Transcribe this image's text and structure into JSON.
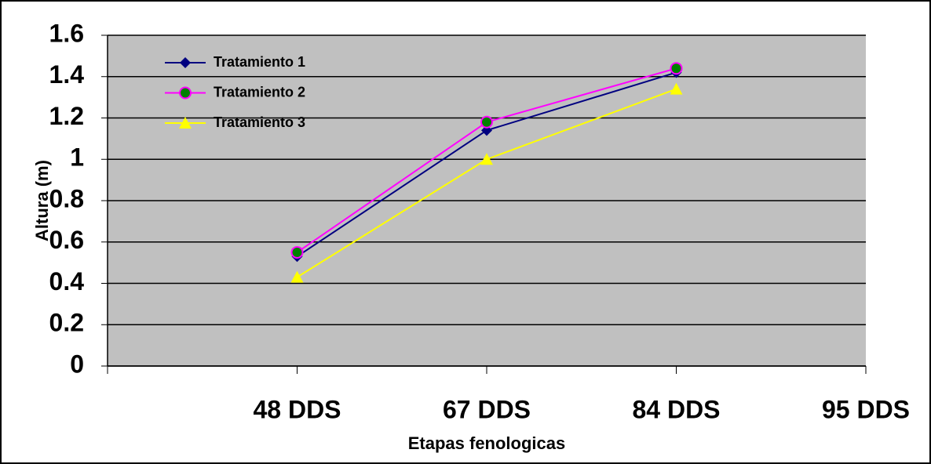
{
  "chart_data": {
    "type": "line",
    "x_label": "Etapas fenologicas",
    "y_label": "Altura (m)",
    "categories": [
      null,
      "48 DDS",
      "67 DDS",
      "84 DDS",
      "95 DDS"
    ],
    "series": [
      {
        "name": "Tratamiento 1",
        "color": "#000080",
        "marker": "diamond",
        "marker_color": "#000080",
        "values": [
          null,
          0.53,
          1.14,
          1.42,
          null
        ]
      },
      {
        "name": "Tratamiento 2",
        "color": "#ff00ff",
        "marker": "circle",
        "marker_color": "#008000",
        "values": [
          null,
          0.55,
          1.18,
          1.44,
          null
        ]
      },
      {
        "name": "Tratamiento 3",
        "color": "#ffff00",
        "marker": "triangle",
        "marker_color": "#ffff00",
        "values": [
          null,
          0.43,
          1.0,
          1.34,
          null
        ]
      }
    ],
    "ylim": [
      0,
      1.6
    ],
    "yticks": [
      0,
      0.2,
      0.4,
      0.6,
      0.8,
      1,
      1.2,
      1.4,
      1.6
    ],
    "grid": true,
    "plot_background": "#c0c0c0",
    "legend": "upper-left"
  }
}
